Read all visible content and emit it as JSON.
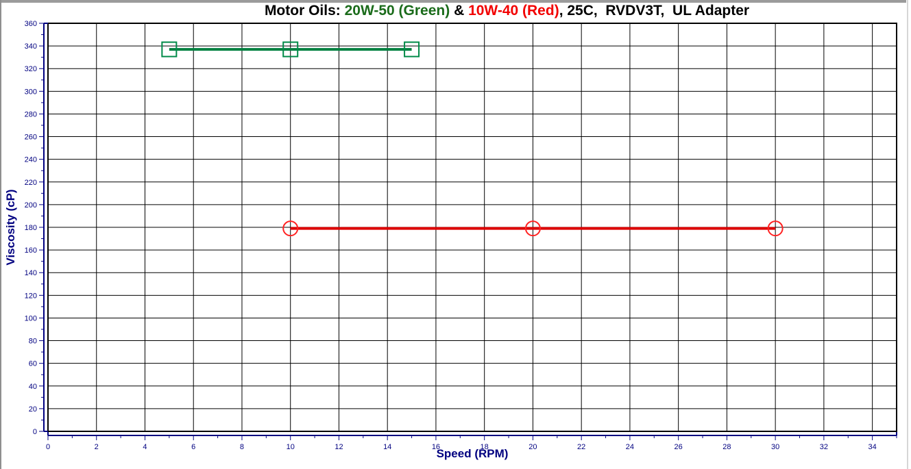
{
  "window": {
    "background": "#ffffff",
    "frame_top_color": "#9b9b9b",
    "frame_left_color": "#8f8f8f",
    "frame_right_color": "#d6d6d6"
  },
  "title": {
    "full_text": "Motor Oils: 20W-50 (Green) & 10W-40 (Red), 25C,  RVDV3T,  UL Adapter",
    "segments": [
      {
        "text": "Motor Oils: ",
        "color": "#000000"
      },
      {
        "text": "20W-50 (Green)",
        "color": "#1a6b1a"
      },
      {
        "text": " & ",
        "color": "#000000"
      },
      {
        "text": "10W-40 (Red)",
        "color": "#f20000"
      },
      {
        "text": ", 25C,  RVDV3T,  UL Adapter",
        "color": "#000000"
      }
    ]
  },
  "chart_data": {
    "type": "line",
    "title": "Motor Oils: 20W-50 (Green) & 10W-40 (Red), 25C, RVDV3T, UL Adapter",
    "xlabel": "Speed (RPM)",
    "ylabel": "Viscosity (cP)",
    "xlim": [
      0,
      35
    ],
    "ylim": [
      0,
      360
    ],
    "x_major": 2,
    "x_minor": 1,
    "y_major": 20,
    "y_minor": 10,
    "grid": true,
    "grid_color": "#000000",
    "plot_border_color": "#000000",
    "axis_color": "#000080",
    "tick_label_color": "#000080",
    "legend_position": "none (series identified by color in title)",
    "series": [
      {
        "name": "20W-50",
        "marker": "square",
        "line_color": "#008040",
        "marker_color": "#008a48",
        "x": [
          5,
          10,
          15
        ],
        "y": [
          337,
          337,
          337
        ]
      },
      {
        "name": "10W-40",
        "marker": "circle",
        "line_color": "#dd0000",
        "marker_color": "#ff2222",
        "x": [
          10,
          20,
          30
        ],
        "y": [
          179,
          179,
          179
        ]
      }
    ]
  }
}
